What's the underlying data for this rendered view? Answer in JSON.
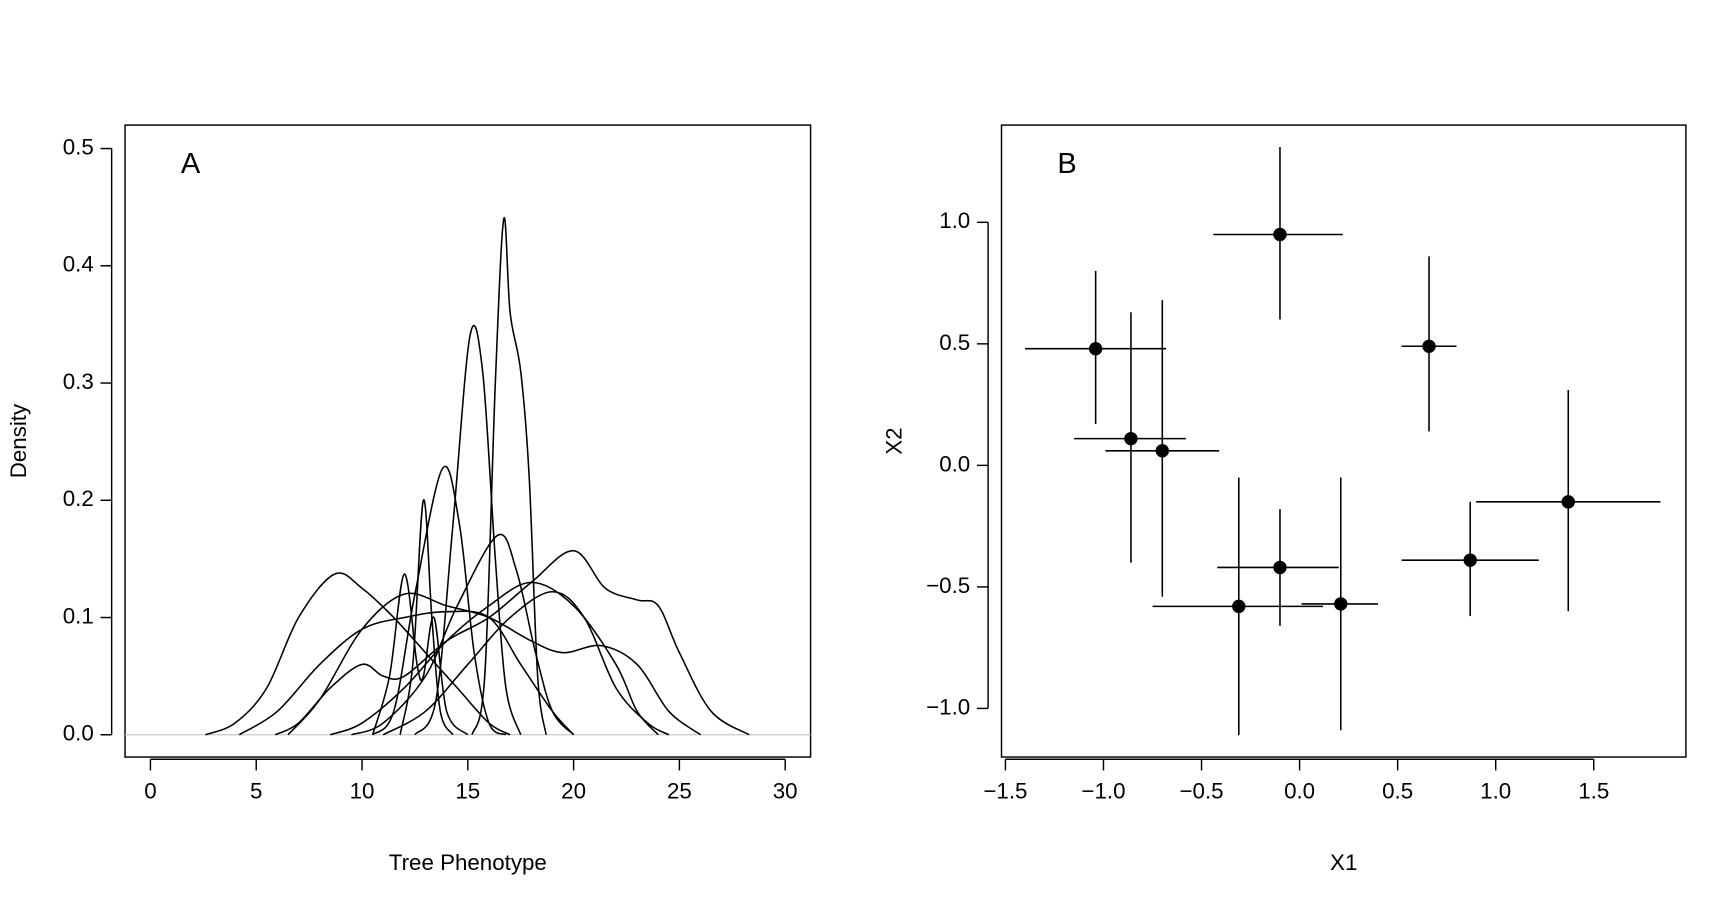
{
  "chart_data": [
    {
      "type": "line",
      "annotation": "A",
      "xlabel": "Tree Phenotype",
      "ylabel": "Density",
      "color": "#000000",
      "xlim": [
        -1.2,
        31.2
      ],
      "ylim": [
        -0.019,
        0.52
      ],
      "xticks": [
        0,
        5,
        10,
        15,
        20,
        25,
        30
      ],
      "yticks": [
        {
          "value": 0,
          "label": "0.0"
        },
        0.1,
        0.2,
        0.3,
        0.4,
        0.5
      ],
      "series": [
        {
          "x": [
            2.6,
            4,
            5.5,
            7,
            8.7,
            10,
            11.5,
            13,
            14.5,
            16,
            17
          ],
          "values": [
            0,
            0.01,
            0.04,
            0.1,
            0.137,
            0.125,
            0.1,
            0.07,
            0.04,
            0.01,
            0
          ]
        },
        {
          "x": [
            5.9,
            7,
            8.5,
            10,
            11,
            12,
            14,
            16,
            18,
            20,
            21.5,
            23,
            24,
            25,
            26.5,
            28.3
          ],
          "values": [
            0,
            0.01,
            0.04,
            0.06,
            0.05,
            0.05,
            0.08,
            0.1,
            0.13,
            0.157,
            0.125,
            0.115,
            0.11,
            0.07,
            0.02,
            0
          ]
        },
        {
          "x": [
            15.2,
            15.8,
            16.3,
            16.7,
            17.0,
            17.5,
            17.9,
            18.3,
            18.7
          ],
          "values": [
            0,
            0.05,
            0.3,
            0.44,
            0.36,
            0.31,
            0.22,
            0.05,
            0
          ]
        },
        {
          "x": [
            12.5,
            13.5,
            14.3,
            15.1,
            15.7,
            16.3,
            16.8,
            17.5
          ],
          "values": [
            0,
            0.03,
            0.18,
            0.34,
            0.31,
            0.15,
            0.04,
            0
          ]
        },
        {
          "x": [
            10.5,
            11.5,
            12.5,
            13.8,
            14.6,
            15.3,
            16,
            16.8
          ],
          "values": [
            0,
            0.02,
            0.12,
            0.227,
            0.18,
            0.07,
            0.01,
            0
          ]
        },
        {
          "x": [
            11.8,
            12.4,
            12.9,
            13.3,
            13.7,
            14.3
          ],
          "values": [
            0,
            0.06,
            0.2,
            0.1,
            0.02,
            0
          ]
        },
        {
          "x": [
            10.5,
            11.3,
            12,
            12.6,
            12.9,
            13.4,
            14,
            15
          ],
          "values": [
            0,
            0.05,
            0.137,
            0.06,
            0.05,
            0.1,
            0.02,
            0
          ]
        },
        {
          "x": [
            9.5,
            11,
            13,
            14.5,
            16.4,
            17.3,
            18.2,
            19,
            20
          ],
          "values": [
            0,
            0.01,
            0.05,
            0.11,
            0.17,
            0.14,
            0.07,
            0.02,
            0
          ]
        },
        {
          "x": [
            8.5,
            10,
            12,
            14,
            16,
            18,
            20,
            22,
            23,
            24
          ],
          "values": [
            0,
            0.01,
            0.04,
            0.08,
            0.11,
            0.13,
            0.11,
            0.06,
            0.02,
            0
          ]
        },
        {
          "x": [
            11,
            13,
            15,
            17,
            19,
            20.5,
            22,
            23.5,
            24.5
          ],
          "values": [
            0,
            0.02,
            0.06,
            0.1,
            0.122,
            0.1,
            0.04,
            0.01,
            0
          ]
        },
        {
          "x": [
            6.5,
            8,
            10,
            12,
            14,
            16,
            18,
            19.5,
            21.3,
            23,
            24.5,
            26
          ],
          "values": [
            0,
            0.03,
            0.09,
            0.12,
            0.11,
            0.1,
            0.08,
            0.07,
            0.076,
            0.06,
            0.02,
            0
          ]
        },
        {
          "x": [
            4.2,
            6,
            8,
            10,
            12,
            14,
            16,
            17.5,
            19,
            20
          ],
          "values": [
            0,
            0.02,
            0.06,
            0.09,
            0.1,
            0.105,
            0.1,
            0.06,
            0.02,
            0
          ]
        }
      ]
    },
    {
      "type": "scatter",
      "annotation": "B",
      "xlabel": "X1",
      "ylabel": "X2",
      "color": "#000000",
      "xlim": [
        -1.52,
        1.97
      ],
      "ylim": [
        -1.2,
        1.4
      ],
      "xticks": [
        {
          "value": -1.5,
          "label": "−1.5"
        },
        {
          "value": -1,
          "label": "−1.0"
        },
        {
          "value": -0.5,
          "label": "−0.5"
        },
        {
          "value": 0,
          "label": "0.0"
        },
        0.5,
        {
          "value": 1,
          "label": "1.0"
        },
        1.5
      ],
      "yticks": [
        {
          "value": -1,
          "label": "−1.0"
        },
        {
          "value": -0.5,
          "label": "−0.5"
        },
        {
          "value": 0,
          "label": "0.0"
        },
        0.5,
        {
          "value": 1,
          "label": "1.0"
        }
      ],
      "x": [
        -1.04,
        -0.86,
        -0.7,
        -0.1,
        0.66,
        -0.1,
        -0.31,
        0.21,
        0.87,
        1.37
      ],
      "values": [
        0.48,
        0.11,
        0.06,
        0.95,
        0.49,
        -0.42,
        -0.58,
        -0.57,
        -0.39,
        -0.15
      ],
      "x_low": [
        -1.4,
        -1.15,
        -0.99,
        -0.44,
        0.52,
        -0.42,
        -0.75,
        0.01,
        0.52,
        0.9
      ],
      "x_high": [
        -0.68,
        -0.58,
        -0.41,
        0.22,
        0.8,
        0.2,
        0.12,
        0.4,
        1.22,
        1.84
      ],
      "y_low": [
        0.17,
        -0.4,
        -0.54,
        0.6,
        0.14,
        -0.66,
        -1.11,
        -1.09,
        -0.62,
        -0.6
      ],
      "y_high": [
        0.8,
        0.63,
        0.68,
        1.31,
        0.86,
        -0.18,
        -0.05,
        -0.05,
        -0.15,
        0.31
      ]
    }
  ]
}
